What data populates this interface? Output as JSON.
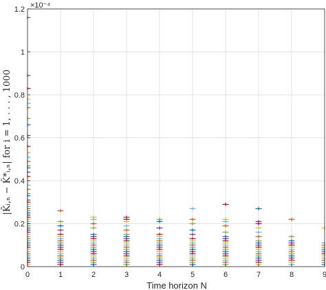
{
  "chart_data": {
    "type": "scatter",
    "title": "",
    "xlabel": "Time horizon N",
    "ylabel": "|K̄ᵢ,ₙ − K̄*ᵢ,ₙ| for i = 1, . . . , 1000",
    "y_exponent_label": "×10⁻⁴",
    "y_exponent": -4,
    "x_ticks": [
      "0",
      "1",
      "2",
      "3",
      "4",
      "5",
      "6",
      "7",
      "8",
      "9"
    ],
    "y_ticks": [
      "0",
      "0.2",
      "0.4",
      "0.6",
      "0.8",
      "1",
      "1.2"
    ],
    "xlim": [
      0,
      9
    ],
    "ylim": [
      0,
      1.2
    ],
    "grid": true,
    "marker": "+",
    "trials": 1000,
    "colors": [
      "#0072BD",
      "#D95319",
      "#EDB120",
      "#7E2F8E",
      "#77AC30",
      "#4DBEEE",
      "#A2142F"
    ],
    "series": [
      {
        "x": 0,
        "values": [
          1.16,
          0.89,
          0.83,
          0.78,
          0.76,
          0.74,
          0.69,
          0.66,
          0.61,
          0.56,
          0.53,
          0.51,
          0.49,
          0.47,
          0.46,
          0.44,
          0.42,
          0.4,
          0.38,
          0.36,
          0.34,
          0.33,
          0.31,
          0.3,
          0.29,
          0.28,
          0.27,
          0.26,
          0.25,
          0.24,
          0.23,
          0.22,
          0.21,
          0.2,
          0.19,
          0.18,
          0.17,
          0.16,
          0.15,
          0.14,
          0.13,
          0.12,
          0.11,
          0.1,
          0.09,
          0.08,
          0.07,
          0.06,
          0.05,
          0.04,
          0.03,
          0.02,
          0.01
        ]
      },
      {
        "x": 1,
        "values": [
          0.26,
          0.21,
          0.19,
          0.17,
          0.15,
          0.14,
          0.13,
          0.12,
          0.11,
          0.1,
          0.09,
          0.08,
          0.07,
          0.06,
          0.05,
          0.04,
          0.03,
          0.02,
          0.01
        ]
      },
      {
        "x": 2,
        "values": [
          0.23,
          0.22,
          0.2,
          0.18,
          0.15,
          0.14,
          0.13,
          0.12,
          0.11,
          0.1,
          0.09,
          0.08,
          0.07,
          0.06,
          0.05,
          0.04,
          0.03,
          0.02,
          0.01
        ]
      },
      {
        "x": 3,
        "values": [
          0.23,
          0.22,
          0.21,
          0.19,
          0.17,
          0.15,
          0.14,
          0.13,
          0.12,
          0.11,
          0.1,
          0.09,
          0.08,
          0.07,
          0.06,
          0.05,
          0.04,
          0.03,
          0.02,
          0.01
        ]
      },
      {
        "x": 4,
        "values": [
          0.22,
          0.21,
          0.18,
          0.15,
          0.14,
          0.13,
          0.12,
          0.11,
          0.1,
          0.09,
          0.08,
          0.07,
          0.06,
          0.05,
          0.04,
          0.03,
          0.02,
          0.01
        ]
      },
      {
        "x": 5,
        "values": [
          0.27,
          0.22,
          0.2,
          0.17,
          0.15,
          0.13,
          0.12,
          0.11,
          0.1,
          0.09,
          0.08,
          0.07,
          0.06,
          0.05,
          0.04,
          0.03,
          0.02,
          0.01
        ]
      },
      {
        "x": 6,
        "values": [
          0.29,
          0.22,
          0.21,
          0.19,
          0.16,
          0.14,
          0.13,
          0.12,
          0.11,
          0.1,
          0.09,
          0.08,
          0.07,
          0.06,
          0.05,
          0.04,
          0.03,
          0.02,
          0.01
        ]
      },
      {
        "x": 7,
        "values": [
          0.27,
          0.21,
          0.2,
          0.18,
          0.16,
          0.14,
          0.12,
          0.11,
          0.1,
          0.09,
          0.08,
          0.07,
          0.06,
          0.05,
          0.04,
          0.03,
          0.02,
          0.01
        ]
      },
      {
        "x": 8,
        "values": [
          0.22,
          0.14,
          0.12,
          0.11,
          0.1,
          0.09,
          0.08,
          0.07,
          0.06,
          0.05,
          0.04,
          0.03,
          0.02,
          0.01
        ]
      },
      {
        "x": 9,
        "values": [
          0.18,
          0.11,
          0.1,
          0.09,
          0.08,
          0.07,
          0.06,
          0.05,
          0.04,
          0.03,
          0.02,
          0.01
        ]
      }
    ]
  }
}
